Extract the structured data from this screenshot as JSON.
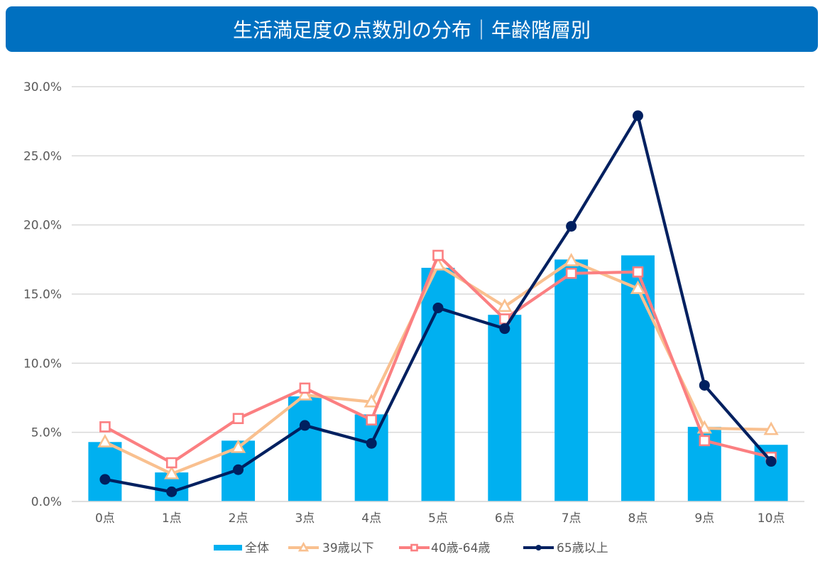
{
  "chart_data": {
    "type": "bar",
    "title": "生活満足度の点数別の分布｜年齢階層別",
    "xlabel": "",
    "ylabel": "",
    "ylim": [
      0,
      30
    ],
    "ytick_step": 5,
    "yticks": [
      "0.0%",
      "5.0%",
      "10.0%",
      "15.0%",
      "20.0%",
      "25.0%",
      "30.0%"
    ],
    "categories": [
      "0点",
      "1点",
      "2点",
      "3点",
      "4点",
      "5点",
      "6点",
      "7点",
      "8点",
      "9点",
      "10点"
    ],
    "grid": true,
    "legend_position": "bottom",
    "series": [
      {
        "name": "全体",
        "type": "bar",
        "color": "#00B0F0",
        "values": [
          4.3,
          2.1,
          4.4,
          7.6,
          6.3,
          16.9,
          13.5,
          17.5,
          17.8,
          5.4,
          4.1
        ]
      },
      {
        "name": "39歳以下",
        "type": "line",
        "marker": "triangle",
        "color": "#F9C08F",
        "values": [
          4.3,
          2.0,
          3.9,
          7.7,
          7.2,
          17.1,
          14.1,
          17.4,
          15.4,
          5.3,
          5.2
        ]
      },
      {
        "name": "40歳-64歳",
        "type": "line",
        "marker": "square",
        "color": "#FB7F81",
        "values": [
          5.4,
          2.8,
          6.0,
          8.2,
          5.9,
          17.8,
          13.2,
          16.5,
          16.6,
          4.4,
          3.2
        ]
      },
      {
        "name": "65歳以上",
        "type": "line",
        "marker": "circle",
        "color": "#002060",
        "values": [
          1.6,
          0.7,
          2.3,
          5.5,
          4.2,
          14.0,
          12.5,
          19.9,
          27.9,
          8.4,
          2.9
        ]
      }
    ]
  },
  "header": {
    "title": "生活満足度の点数別の分布｜年齢階層別",
    "bg_color": "#0070C0"
  }
}
